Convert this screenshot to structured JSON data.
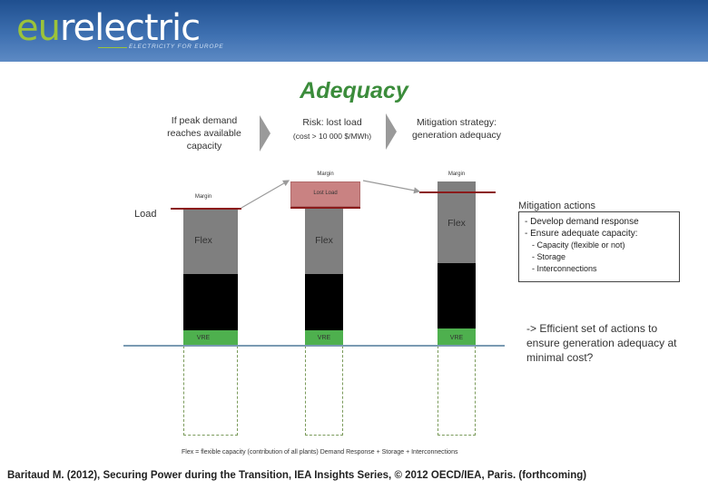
{
  "header": {
    "logo_prefix": "eu",
    "logo_rest": "relectric",
    "tagline": "ELECTRICITY FOR EUROPE",
    "background_color": "#2e5f9f",
    "accent_color": "#9bc33a"
  },
  "title": "Adequacy",
  "steps": [
    {
      "text": "If peak demand reaches available capacity"
    },
    {
      "text": "Risk: lost load",
      "subtext": "(cost > 10 000 $/MWh)"
    },
    {
      "text": "Mitigation strategy: generation adequacy"
    }
  ],
  "load_label": "Load",
  "columns": [
    {
      "margin_label": "Margin",
      "flex_label": "Flex",
      "vre_label": "VRE"
    },
    {
      "margin_label": "Margin",
      "lost_load_label": "Lost Load",
      "flex_label": "Flex",
      "vre_label": "VRE"
    },
    {
      "margin_label": "Margin",
      "flex_label": "Flex",
      "vre_label": "VRE"
    }
  ],
  "mitigation": {
    "heading": "Mitigation actions",
    "items": [
      "- Develop demand response",
      "- Ensure adequate capacity:"
    ],
    "subitems": [
      "- Capacity (flexible or not)",
      "- Storage",
      "- Interconnections"
    ]
  },
  "conclusion": "-> Efficient set of actions to ensure generation adequacy at minimal cost?",
  "footnote": "Flex = flexible capacity (contribution of all plants) Demand Response + Storage + Interconnections",
  "credit": "Baritaud M. (2012), Securing Power during the Transition, IEA Insights Series, © 2012 OECD/IEA, Paris. (forthcoming)",
  "colors": {
    "flex": "#7f7f7f",
    "vre": "#4eb04e",
    "lost_load": "#c98282",
    "title": "#3b8c3b",
    "load_line": "#8b1a1a"
  }
}
